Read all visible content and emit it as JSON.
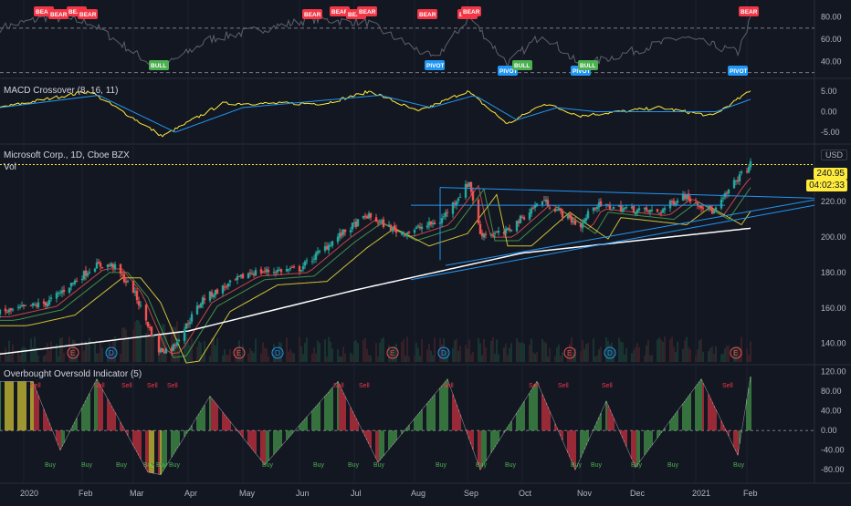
{
  "colors": {
    "bg": "#131722",
    "grid": "#1e222d",
    "divider": "#2a2e39",
    "axis_text": "#b2b5be",
    "up": "#26a69a",
    "down": "#ef5350",
    "macd": "#ffeb3b",
    "signal": "#2196f3",
    "ma200": "#ffffff",
    "ma50": "#ffeb3b",
    "ma20": "#4caf50",
    "ma10": "#ef5350",
    "trend": "#2196f3",
    "bear": "#f23645",
    "bull": "#4caf50",
    "pivot": "#2196f3",
    "osc_up": "#4caf50",
    "osc_down": "#f23645",
    "osc_flat": "#ffeb3b"
  },
  "panes": {
    "rsi": {
      "ticks": [
        "80.00",
        "60.00",
        "40.00"
      ],
      "markers": [
        {
          "label": "BEAR",
          "kind": "bear",
          "date": "2020-01-13"
        },
        {
          "label": "BEAR",
          "kind": "bear",
          "date": "2020-01-21"
        },
        {
          "label": "BEAR",
          "kind": "bear",
          "date": "2020-01-31"
        },
        {
          "label": "BEAR",
          "kind": "bear",
          "date": "2020-02-06"
        },
        {
          "label": "BULL",
          "kind": "bull",
          "date": "2020-03-16"
        },
        {
          "label": "BEAR",
          "kind": "bear",
          "date": "2020-06-08"
        },
        {
          "label": "BEAR",
          "kind": "bear",
          "date": "2020-06-23"
        },
        {
          "label": "BEAR",
          "kind": "bear",
          "date": "2020-07-02"
        },
        {
          "label": "BEAR",
          "kind": "bear",
          "date": "2020-07-08"
        },
        {
          "label": "BEAR",
          "kind": "bear",
          "date": "2020-08-10"
        },
        {
          "label": "PIVOT",
          "kind": "pivot",
          "date": "2020-08-14"
        },
        {
          "label": "BEAR",
          "kind": "bear",
          "date": "2020-09-01"
        },
        {
          "label": "BEAR",
          "kind": "bear",
          "date": "2020-09-03"
        },
        {
          "label": "PIVOT",
          "kind": "pivot",
          "date": "2020-09-23"
        },
        {
          "label": "BULL",
          "kind": "bull",
          "date": "2020-10-01"
        },
        {
          "label": "PIVOT",
          "kind": "pivot",
          "date": "2020-11-02"
        },
        {
          "label": "BULL",
          "kind": "bull",
          "date": "2020-11-06"
        },
        {
          "label": "PIVOT",
          "kind": "pivot",
          "date": "2021-01-27"
        },
        {
          "label": "BEAR",
          "kind": "bear",
          "date": "2021-02-02"
        }
      ]
    },
    "macd": {
      "title": "MACD Crossover (8, 16, 11)",
      "ticks": [
        "5.00",
        "0.00",
        "-5.00"
      ]
    },
    "price": {
      "title": "Microsoft Corp., 1D, Cboe BZX",
      "subtitle": "Vol",
      "currency": "USD",
      "last_price": "240.95",
      "countdown": "04:02:33",
      "ticks": [
        "220.00",
        "200.00",
        "180.00",
        "160.00",
        "140.00"
      ],
      "events": [
        {
          "label": "E",
          "kind": "earnings",
          "date": "2020-01-29"
        },
        {
          "label": "D",
          "kind": "dividend",
          "date": "2020-02-19"
        },
        {
          "label": "E",
          "kind": "earnings",
          "date": "2020-04-29"
        },
        {
          "label": "D",
          "kind": "dividend",
          "date": "2020-05-20"
        },
        {
          "label": "E",
          "kind": "earnings",
          "date": "2020-07-22"
        },
        {
          "label": "D",
          "kind": "dividend",
          "date": "2020-08-19"
        },
        {
          "label": "E",
          "kind": "earnings",
          "date": "2020-10-27"
        },
        {
          "label": "D",
          "kind": "dividend",
          "date": "2020-11-18"
        },
        {
          "label": "E",
          "kind": "earnings",
          "date": "2021-01-26"
        }
      ]
    },
    "osc": {
      "title": "Overbought Oversold Indicator (5)",
      "ticks": [
        "120.00",
        "80.00",
        "40.00",
        "0.00",
        "-40.00",
        "-80.00"
      ],
      "signals": [
        {
          "label": "Sell",
          "kind": "sell",
          "date": "2020-01-08"
        },
        {
          "label": "Sell",
          "kind": "sell",
          "date": "2020-02-12"
        },
        {
          "label": "Sell",
          "kind": "sell",
          "date": "2020-02-27"
        },
        {
          "label": "Sell",
          "kind": "sell",
          "date": "2020-03-12"
        },
        {
          "label": "Sell",
          "kind": "sell",
          "date": "2020-03-23"
        },
        {
          "label": "Sell",
          "kind": "sell",
          "date": "2020-06-22"
        },
        {
          "label": "Sell",
          "kind": "sell",
          "date": "2020-07-06"
        },
        {
          "label": "Sell",
          "kind": "sell",
          "date": "2020-08-21"
        },
        {
          "label": "Sell",
          "kind": "sell",
          "date": "2020-10-07"
        },
        {
          "label": "Sell",
          "kind": "sell",
          "date": "2020-10-23"
        },
        {
          "label": "Sell",
          "kind": "sell",
          "date": "2020-11-16"
        },
        {
          "label": "Sell",
          "kind": "sell",
          "date": "2021-01-21"
        },
        {
          "label": "Buy",
          "kind": "buy",
          "date": "2020-01-16"
        },
        {
          "label": "Buy",
          "kind": "buy",
          "date": "2020-02-05"
        },
        {
          "label": "Buy",
          "kind": "buy",
          "date": "2020-02-24"
        },
        {
          "label": "Buy",
          "kind": "buy",
          "date": "2020-03-10"
        },
        {
          "label": "Buy",
          "kind": "buy",
          "date": "2020-03-17"
        },
        {
          "label": "Buy",
          "kind": "buy",
          "date": "2020-03-24"
        },
        {
          "label": "Buy",
          "kind": "buy",
          "date": "2020-05-14"
        },
        {
          "label": "Buy",
          "kind": "buy",
          "date": "2020-06-11"
        },
        {
          "label": "Buy",
          "kind": "buy",
          "date": "2020-06-30"
        },
        {
          "label": "Buy",
          "kind": "buy",
          "date": "2020-07-14"
        },
        {
          "label": "Buy",
          "kind": "buy",
          "date": "2020-08-17"
        },
        {
          "label": "Buy",
          "kind": "buy",
          "date": "2020-09-08"
        },
        {
          "label": "Buy",
          "kind": "buy",
          "date": "2020-09-24"
        },
        {
          "label": "Buy",
          "kind": "buy",
          "date": "2020-10-30"
        },
        {
          "label": "Buy",
          "kind": "buy",
          "date": "2020-11-10"
        },
        {
          "label": "Buy",
          "kind": "buy",
          "date": "2020-12-02"
        },
        {
          "label": "Buy",
          "kind": "buy",
          "date": "2020-12-22"
        },
        {
          "label": "Buy",
          "kind": "buy",
          "date": "2021-01-27"
        }
      ]
    }
  },
  "x_axis": {
    "labels": [
      {
        "text": "2020",
        "date": "2020-01-02"
      },
      {
        "text": "Feb",
        "date": "2020-02-03"
      },
      {
        "text": "Mar",
        "date": "2020-03-02"
      },
      {
        "text": "Apr",
        "date": "2020-04-01"
      },
      {
        "text": "May",
        "date": "2020-05-01"
      },
      {
        "text": "Jun",
        "date": "2020-06-01"
      },
      {
        "text": "Jul",
        "date": "2020-07-01"
      },
      {
        "text": "Aug",
        "date": "2020-08-03"
      },
      {
        "text": "Sep",
        "date": "2020-09-01"
      },
      {
        "text": "Oct",
        "date": "2020-10-01"
      },
      {
        "text": "Nov",
        "date": "2020-11-02"
      },
      {
        "text": "Dec",
        "date": "2020-12-01"
      },
      {
        "text": "2021",
        "date": "2021-01-04"
      },
      {
        "text": "Feb",
        "date": "2021-02-01"
      }
    ]
  },
  "chart_data": {
    "type": "candlestick",
    "symbol": "MSFT",
    "x_range": [
      "2019-12-20",
      "2021-03-10"
    ],
    "price": {
      "ylim": [
        128,
        252
      ],
      "close": [
        {
          "date": "2019-12-20",
          "value": 157
        },
        {
          "date": "2020-01-15",
          "value": 163
        },
        {
          "date": "2020-02-10",
          "value": 184
        },
        {
          "date": "2020-02-20",
          "value": 184
        },
        {
          "date": "2020-03-02",
          "value": 170
        },
        {
          "date": "2020-03-16",
          "value": 136
        },
        {
          "date": "2020-03-23",
          "value": 137
        },
        {
          "date": "2020-04-09",
          "value": 165
        },
        {
          "date": "2020-05-05",
          "value": 180
        },
        {
          "date": "2020-06-01",
          "value": 182
        },
        {
          "date": "2020-06-23",
          "value": 201
        },
        {
          "date": "2020-07-08",
          "value": 212
        },
        {
          "date": "2020-07-27",
          "value": 202
        },
        {
          "date": "2020-08-17",
          "value": 209
        },
        {
          "date": "2020-09-02",
          "value": 231
        },
        {
          "date": "2020-09-08",
          "value": 202
        },
        {
          "date": "2020-09-21",
          "value": 202
        },
        {
          "date": "2020-10-12",
          "value": 221
        },
        {
          "date": "2020-11-02",
          "value": 206
        },
        {
          "date": "2020-11-09",
          "value": 218
        },
        {
          "date": "2020-12-15",
          "value": 214
        },
        {
          "date": "2020-12-28",
          "value": 224
        },
        {
          "date": "2021-01-14",
          "value": 214
        },
        {
          "date": "2021-01-26",
          "value": 232
        },
        {
          "date": "2021-02-03",
          "value": 240.95
        }
      ],
      "ma200": [
        {
          "date": "2019-12-20",
          "value": 134
        },
        {
          "date": "2020-04-01",
          "value": 147
        },
        {
          "date": "2020-07-01",
          "value": 170
        },
        {
          "date": "2020-10-01",
          "value": 191
        },
        {
          "date": "2021-02-03",
          "value": 205
        }
      ],
      "trend_lines": [
        {
          "from": {
            "date": "2020-08-17",
            "value": 228
          },
          "to": {
            "date": "2021-03-10",
            "value": 222
          }
        },
        {
          "from": {
            "date": "2020-08-01",
            "value": 176
          },
          "to": {
            "date": "2021-03-10",
            "value": 218
          }
        },
        {
          "from": {
            "date": "2020-08-20",
            "value": 184
          },
          "to": {
            "date": "2021-03-10",
            "value": 221
          }
        }
      ]
    },
    "macd": {
      "ylim": [
        -7,
        7
      ],
      "macd_line": [
        {
          "date": "2019-12-20",
          "value": 1
        },
        {
          "date": "2020-02-07",
          "value": 5
        },
        {
          "date": "2020-03-18",
          "value": -6
        },
        {
          "date": "2020-04-20",
          "value": 2
        },
        {
          "date": "2020-06-15",
          "value": 2
        },
        {
          "date": "2020-07-10",
          "value": 5
        },
        {
          "date": "2020-08-05",
          "value": 0
        },
        {
          "date": "2020-09-01",
          "value": 5
        },
        {
          "date": "2020-09-23",
          "value": -3
        },
        {
          "date": "2020-10-13",
          "value": 2
        },
        {
          "date": "2020-11-02",
          "value": -1
        },
        {
          "date": "2020-12-15",
          "value": 1
        },
        {
          "date": "2021-01-13",
          "value": -1
        },
        {
          "date": "2021-02-03",
          "value": 5
        }
      ],
      "signal_line": [
        {
          "date": "2019-12-20",
          "value": 1
        },
        {
          "date": "2020-02-12",
          "value": 4
        },
        {
          "date": "2020-03-25",
          "value": -5
        },
        {
          "date": "2020-05-01",
          "value": 1
        },
        {
          "date": "2020-07-15",
          "value": 4
        },
        {
          "date": "2020-08-12",
          "value": 1
        },
        {
          "date": "2020-09-05",
          "value": 4
        },
        {
          "date": "2020-09-28",
          "value": -2
        },
        {
          "date": "2020-10-20",
          "value": 1
        },
        {
          "date": "2020-11-10",
          "value": 0
        },
        {
          "date": "2021-01-15",
          "value": 0
        },
        {
          "date": "2021-02-03",
          "value": 3
        }
      ]
    },
    "rsi": {
      "ylim": [
        28,
        92
      ],
      "levels": [
        70,
        30
      ],
      "values": [
        {
          "date": "2019-12-20",
          "value": 70
        },
        {
          "date": "2020-01-15",
          "value": 80
        },
        {
          "date": "2020-02-07",
          "value": 75
        },
        {
          "date": "2020-03-16",
          "value": 33
        },
        {
          "date": "2020-04-13",
          "value": 60
        },
        {
          "date": "2020-06-08",
          "value": 78
        },
        {
          "date": "2020-07-08",
          "value": 75
        },
        {
          "date": "2020-08-14",
          "value": 42
        },
        {
          "date": "2020-09-02",
          "value": 80
        },
        {
          "date": "2020-09-23",
          "value": 38
        },
        {
          "date": "2020-10-12",
          "value": 65
        },
        {
          "date": "2020-11-02",
          "value": 36
        },
        {
          "date": "2020-12-28",
          "value": 62
        },
        {
          "date": "2021-01-27",
          "value": 48
        },
        {
          "date": "2021-02-03",
          "value": 78
        }
      ]
    },
    "oscillator": {
      "ylim": [
        -100,
        125
      ],
      "peaks": [
        {
          "date": "2020-01-07",
          "value": 100
        },
        {
          "date": "2020-01-22",
          "value": -40
        },
        {
          "date": "2020-02-11",
          "value": 105
        },
        {
          "date": "2020-03-10",
          "value": -85
        },
        {
          "date": "2020-03-17",
          "value": -90
        },
        {
          "date": "2020-04-13",
          "value": 70
        },
        {
          "date": "2020-05-13",
          "value": -70
        },
        {
          "date": "2020-06-22",
          "value": 100
        },
        {
          "date": "2020-07-14",
          "value": -65
        },
        {
          "date": "2020-08-21",
          "value": 105
        },
        {
          "date": "2020-09-08",
          "value": -80
        },
        {
          "date": "2020-10-09",
          "value": 100
        },
        {
          "date": "2020-10-30",
          "value": -80
        },
        {
          "date": "2020-11-16",
          "value": 60
        },
        {
          "date": "2020-12-02",
          "value": -75
        },
        {
          "date": "2021-01-07",
          "value": 105
        },
        {
          "date": "2021-01-27",
          "value": -50
        },
        {
          "date": "2021-02-03",
          "value": 110
        }
      ]
    }
  }
}
